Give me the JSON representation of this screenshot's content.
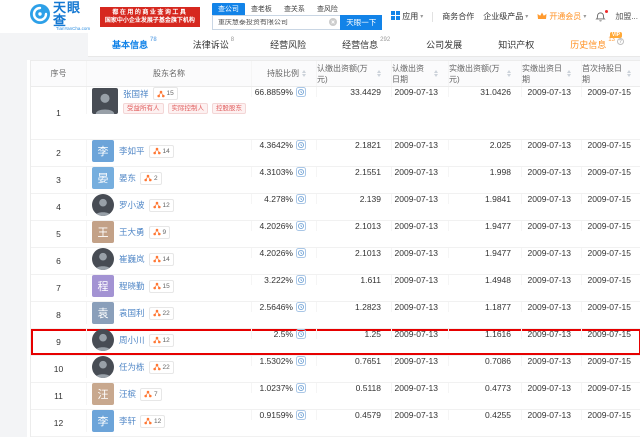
{
  "header": {
    "logo_text": "天眼查",
    "logo_sub": "TianYanCha.com",
    "banner_line1": "都在用的商业查询工具",
    "banner_line2": "国家中小企业发展子基金旗下机构",
    "search_tabs": [
      {
        "label": "查公司",
        "active": true
      },
      {
        "label": "查老板",
        "active": false
      },
      {
        "label": "查关系",
        "active": false
      },
      {
        "label": "查风险",
        "active": false
      }
    ],
    "search_value": "重庆慧泰投资有限公司",
    "search_button": "天眼一下",
    "nav": {
      "apps": "应用",
      "cooperation": "商务合作",
      "enterprise": "企业级产品",
      "vip": "开通会员",
      "user": "加盟..."
    }
  },
  "tabs": [
    {
      "label": "基本信息",
      "count": "78",
      "active": true
    },
    {
      "label": "法律诉讼",
      "count": "8"
    },
    {
      "label": "经营风险",
      "count": ""
    },
    {
      "label": "经营信息",
      "count": "292"
    },
    {
      "label": "公司发展",
      "count": ""
    },
    {
      "label": "知识产权",
      "count": ""
    },
    {
      "label": "历史信息",
      "count": "13",
      "vip": "VIP",
      "history": true,
      "info": true
    }
  ],
  "table": {
    "headers": [
      "序号",
      "股东名称",
      "持股比例",
      "认缴出资额(万元)",
      "认缴出资日期",
      "实缴出资额(万元)",
      "实缴出资日期",
      "首次持股日期"
    ],
    "rows": [
      {
        "no": "1",
        "name": "张国祥",
        "badge": "15",
        "avatar": {
          "type": "photo",
          "shape": "square"
        },
        "tags": [
          "受益所有人",
          "实际控制人",
          "控股股东"
        ],
        "ratio": "66.8859%",
        "sub_amount": "33.4429",
        "sub_date": "2009-07-13",
        "paid_amount": "31.0426",
        "paid_date": "2009-07-13",
        "first_date": "2009-07-15",
        "highlight": false
      },
      {
        "no": "2",
        "name": "李如平",
        "badge": "14",
        "avatar": {
          "type": "char",
          "char": "李",
          "color": "#6ca4d9"
        },
        "tags": [],
        "ratio": "4.3642%",
        "sub_amount": "2.1821",
        "sub_date": "2009-07-13",
        "paid_amount": "2.025",
        "paid_date": "2009-07-13",
        "first_date": "2009-07-15",
        "highlight": false
      },
      {
        "no": "3",
        "name": "晏东",
        "badge": "2",
        "avatar": {
          "type": "char",
          "char": "晏",
          "color": "#76aede"
        },
        "tags": [],
        "ratio": "4.3103%",
        "sub_amount": "2.1551",
        "sub_date": "2009-07-13",
        "paid_amount": "1.998",
        "paid_date": "2009-07-13",
        "first_date": "2009-07-15",
        "highlight": false
      },
      {
        "no": "4",
        "name": "罗小波",
        "badge": "12",
        "avatar": {
          "type": "photo",
          "shape": "circle"
        },
        "tags": [],
        "ratio": "4.278%",
        "sub_amount": "2.139",
        "sub_date": "2009-07-13",
        "paid_amount": "1.9841",
        "paid_date": "2009-07-13",
        "first_date": "2009-07-15",
        "highlight": false
      },
      {
        "no": "5",
        "name": "王大勇",
        "badge": "9",
        "avatar": {
          "type": "char",
          "char": "王",
          "color": "#c3a187"
        },
        "tags": [],
        "ratio": "4.2026%",
        "sub_amount": "2.1013",
        "sub_date": "2009-07-13",
        "paid_amount": "1.9477",
        "paid_date": "2009-07-13",
        "first_date": "2009-07-15",
        "highlight": false
      },
      {
        "no": "6",
        "name": "崔巍岚",
        "badge": "14",
        "avatar": {
          "type": "photo",
          "shape": "circle"
        },
        "tags": [],
        "ratio": "4.2026%",
        "sub_amount": "2.1013",
        "sub_date": "2009-07-13",
        "paid_amount": "1.9477",
        "paid_date": "2009-07-13",
        "first_date": "2009-07-15",
        "highlight": false
      },
      {
        "no": "7",
        "name": "程晓勤",
        "badge": "15",
        "avatar": {
          "type": "char",
          "char": "程",
          "color": "#a393d3"
        },
        "tags": [],
        "ratio": "3.222%",
        "sub_amount": "1.611",
        "sub_date": "2009-07-13",
        "paid_amount": "1.4948",
        "paid_date": "2009-07-13",
        "first_date": "2009-07-15",
        "highlight": false
      },
      {
        "no": "8",
        "name": "袁国利",
        "badge": "22",
        "avatar": {
          "type": "char",
          "char": "袁",
          "color": "#8a9fba"
        },
        "tags": [],
        "ratio": "2.5646%",
        "sub_amount": "1.2823",
        "sub_date": "2009-07-13",
        "paid_amount": "1.1877",
        "paid_date": "2009-07-13",
        "first_date": "2009-07-15",
        "highlight": false
      },
      {
        "no": "9",
        "name": "周小川",
        "badge": "12",
        "avatar": {
          "type": "photo",
          "shape": "circle"
        },
        "tags": [],
        "ratio": "2.5%",
        "sub_amount": "1.25",
        "sub_date": "2009-07-13",
        "paid_amount": "1.1616",
        "paid_date": "2009-07-13",
        "first_date": "2009-07-15",
        "highlight": true
      },
      {
        "no": "10",
        "name": "任为栋",
        "badge": "22",
        "avatar": {
          "type": "photo",
          "shape": "circle"
        },
        "tags": [],
        "ratio": "1.5302%",
        "sub_amount": "0.7651",
        "sub_date": "2009-07-13",
        "paid_amount": "0.7086",
        "paid_date": "2009-07-13",
        "first_date": "2009-07-15",
        "highlight": false
      },
      {
        "no": "11",
        "name": "汪槟",
        "badge": "7",
        "avatar": {
          "type": "char",
          "char": "汪",
          "color": "#c8a88e"
        },
        "tags": [],
        "ratio": "1.0237%",
        "sub_amount": "0.5118",
        "sub_date": "2009-07-13",
        "paid_amount": "0.4773",
        "paid_date": "2009-07-13",
        "first_date": "2009-07-15",
        "highlight": false
      },
      {
        "no": "12",
        "name": "李轩",
        "badge": "12",
        "avatar": {
          "type": "char",
          "char": "李",
          "color": "#6ca4d9"
        },
        "tags": [],
        "ratio": "0.9159%",
        "sub_amount": "0.4579",
        "sub_date": "2009-07-13",
        "paid_amount": "0.4255",
        "paid_date": "2009-07-13",
        "first_date": "2009-07-15",
        "highlight": false
      }
    ]
  },
  "colors": {
    "accent_blue": "#1283e8",
    "brand_red": "#d6281f",
    "vip_orange": "#ff8f1f",
    "highlight_red": "#e60000",
    "link_blue": "#4f86c6",
    "badge_orange": "#ff7733"
  }
}
